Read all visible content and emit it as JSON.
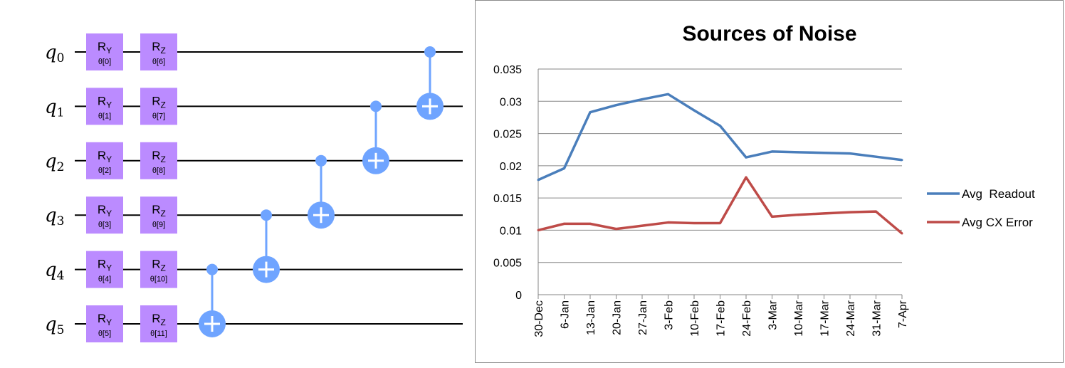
{
  "circuit": {
    "qubits": [
      {
        "name": "q",
        "index": "0"
      },
      {
        "name": "q",
        "index": "1"
      },
      {
        "name": "q",
        "index": "2"
      },
      {
        "name": "q",
        "index": "3"
      },
      {
        "name": "q",
        "index": "4"
      },
      {
        "name": "q",
        "index": "5"
      }
    ],
    "ry_gates": [
      {
        "base": "R",
        "sub": "Y",
        "param": "θ[0]"
      },
      {
        "base": "R",
        "sub": "Y",
        "param": "θ[1]"
      },
      {
        "base": "R",
        "sub": "Y",
        "param": "θ[2]"
      },
      {
        "base": "R",
        "sub": "Y",
        "param": "θ[3]"
      },
      {
        "base": "R",
        "sub": "Y",
        "param": "θ[4]"
      },
      {
        "base": "R",
        "sub": "Y",
        "param": "θ[5]"
      }
    ],
    "rz_gates": [
      {
        "base": "R",
        "sub": "Z",
        "param": "θ[6]"
      },
      {
        "base": "R",
        "sub": "Z",
        "param": "θ[7]"
      },
      {
        "base": "R",
        "sub": "Z",
        "param": "θ[8]"
      },
      {
        "base": "R",
        "sub": "Z",
        "param": "θ[9]"
      },
      {
        "base": "R",
        "sub": "Z",
        "param": "θ[10]"
      },
      {
        "base": "R",
        "sub": "Z",
        "param": "θ[11]"
      }
    ],
    "cnots": [
      {
        "control": 4,
        "target": 5
      },
      {
        "control": 3,
        "target": 4
      },
      {
        "control": 2,
        "target": 3
      },
      {
        "control": 1,
        "target": 2
      },
      {
        "control": 0,
        "target": 1
      }
    ],
    "colors": {
      "gate": "#bb8bff",
      "cnot": "#6fa4ff",
      "wire": "#000000"
    }
  },
  "chart_data": {
    "type": "line",
    "title": "Sources of Noise",
    "xlabel": "",
    "ylabel": "",
    "ylim": [
      0,
      0.035
    ],
    "yticks": [
      "0",
      "0.005",
      "0.01",
      "0.015",
      "0.02",
      "0.025",
      "0.03",
      "0.035"
    ],
    "categories": [
      "30-Dec",
      "6-Jan",
      "13-Jan",
      "20-Jan",
      "27-Jan",
      "3-Feb",
      "10-Feb",
      "17-Feb",
      "24-Feb",
      "3-Mar",
      "10-Mar",
      "17-Mar",
      "24-Mar",
      "31-Mar",
      "7-Apr"
    ],
    "grid": true,
    "legend_position": "right",
    "series": [
      {
        "name": "Avg  Readout",
        "color": "#4a7ebb",
        "x": [
          0,
          1,
          2,
          3,
          4,
          5,
          6,
          7,
          8,
          9,
          10,
          11,
          12,
          13,
          14
        ],
        "values": [
          0.0178,
          0.0196,
          0.0283,
          0.0294,
          0.0303,
          0.0311,
          0.0286,
          0.0262,
          0.0213,
          0.0222,
          0.0221,
          0.022,
          0.0219,
          0.0214,
          0.0209
        ]
      },
      {
        "name": "Avg CX Error",
        "color": "#be4b48",
        "x": [
          0,
          1,
          2,
          3,
          4,
          5,
          6,
          7,
          8,
          9,
          10,
          11,
          12,
          13,
          14
        ],
        "values": [
          0.01,
          0.011,
          0.011,
          0.0102,
          0.0107,
          0.0112,
          0.0111,
          0.0111,
          0.0182,
          0.0121,
          0.0124,
          0.0126,
          0.0128,
          0.0129,
          0.0095
        ]
      }
    ]
  }
}
